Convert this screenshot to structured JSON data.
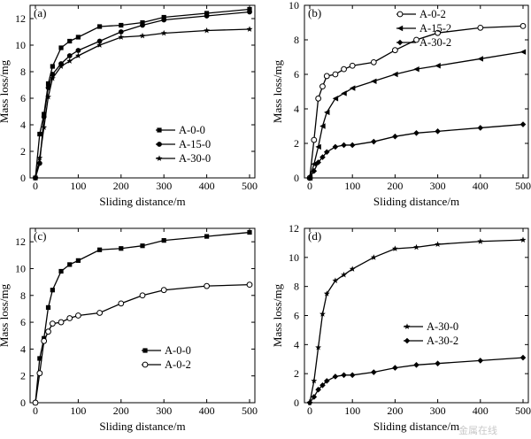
{
  "colors": {
    "ink": "#000000",
    "watermark": "#c9c9c9"
  },
  "watermark": "金属在线",
  "chart_data": [
    {
      "type": "line",
      "label": "(a)",
      "xlabel": "Sliding distance/m",
      "ylabel": "Mass loss/mg",
      "xlim": [
        0,
        500
      ],
      "ylim": [
        0,
        13
      ],
      "xticks": [
        0,
        100,
        200,
        300,
        400,
        500
      ],
      "yticks": [
        0,
        2,
        4,
        6,
        8,
        10,
        12
      ],
      "legend_position": "lower-right",
      "series": [
        {
          "name": "A-0-0",
          "marker": "square",
          "x": [
            0,
            10,
            20,
            30,
            40,
            60,
            80,
            100,
            150,
            200,
            250,
            300,
            400,
            500
          ],
          "y": [
            0,
            3.3,
            4.8,
            7.1,
            8.4,
            9.8,
            10.3,
            10.6,
            11.4,
            11.5,
            11.7,
            12.1,
            12.4,
            12.7
          ]
        },
        {
          "name": "A-15-0",
          "marker": "circle",
          "x": [
            0,
            10,
            20,
            30,
            40,
            60,
            80,
            100,
            150,
            200,
            250,
            300,
            400,
            500
          ],
          "y": [
            0,
            1.1,
            4.6,
            6.8,
            7.8,
            8.6,
            9.2,
            9.6,
            10.3,
            11.0,
            11.5,
            11.9,
            12.2,
            12.5
          ]
        },
        {
          "name": "A-30-0",
          "marker": "star",
          "x": [
            0,
            10,
            20,
            30,
            40,
            60,
            80,
            100,
            150,
            200,
            250,
            300,
            400,
            500
          ],
          "y": [
            0,
            1.5,
            3.8,
            6.1,
            7.5,
            8.4,
            8.8,
            9.2,
            10.0,
            10.6,
            10.7,
            10.9,
            11.1,
            11.2
          ]
        }
      ]
    },
    {
      "type": "line",
      "label": "(b)",
      "xlabel": "Sliding distance/m",
      "ylabel": "Mass loss/mg",
      "xlim": [
        0,
        500
      ],
      "ylim": [
        0,
        10
      ],
      "xticks": [
        0,
        100,
        200,
        300,
        400,
        500
      ],
      "yticks": [
        0,
        2,
        4,
        6,
        8,
        10
      ],
      "legend_position": "top-left",
      "series": [
        {
          "name": "A-0-2",
          "marker": "open-circle",
          "x": [
            0,
            10,
            20,
            30,
            40,
            60,
            80,
            100,
            150,
            200,
            250,
            300,
            400,
            500
          ],
          "y": [
            0,
            2.2,
            4.6,
            5.3,
            5.9,
            6.0,
            6.3,
            6.5,
            6.7,
            7.4,
            8.0,
            8.4,
            8.7,
            8.8
          ]
        },
        {
          "name": "A-15-2",
          "marker": "left-triangle",
          "x": [
            0,
            10,
            20,
            30,
            40,
            60,
            80,
            100,
            150,
            200,
            250,
            300,
            400,
            500
          ],
          "y": [
            0,
            0.8,
            1.8,
            3.0,
            3.8,
            4.6,
            4.9,
            5.2,
            5.6,
            6.0,
            6.3,
            6.5,
            6.9,
            7.3
          ]
        },
        {
          "name": "A-30-2",
          "marker": "diamond",
          "x": [
            0,
            10,
            20,
            30,
            40,
            60,
            80,
            100,
            150,
            200,
            250,
            300,
            400,
            500
          ],
          "y": [
            0,
            0.4,
            0.9,
            1.2,
            1.5,
            1.8,
            1.9,
            1.9,
            2.1,
            2.4,
            2.6,
            2.7,
            2.9,
            3.1
          ]
        }
      ]
    },
    {
      "type": "line",
      "label": "(c)",
      "xlabel": "Sliding distance/m",
      "ylabel": "Mass loss/mg",
      "xlim": [
        0,
        500
      ],
      "ylim": [
        0,
        13
      ],
      "xticks": [
        0,
        100,
        200,
        300,
        400,
        500
      ],
      "yticks": [
        0,
        2,
        4,
        6,
        8,
        10,
        12
      ],
      "legend_position": "lower-right",
      "series": [
        {
          "name": "A-0-0",
          "marker": "square",
          "x": [
            0,
            10,
            20,
            30,
            40,
            60,
            80,
            100,
            150,
            200,
            250,
            300,
            400,
            500
          ],
          "y": [
            0,
            3.3,
            4.8,
            7.1,
            8.4,
            9.8,
            10.3,
            10.6,
            11.4,
            11.5,
            11.7,
            12.1,
            12.4,
            12.7
          ]
        },
        {
          "name": "A-0-2",
          "marker": "open-circle",
          "x": [
            0,
            10,
            20,
            30,
            40,
            60,
            80,
            100,
            150,
            200,
            250,
            300,
            400,
            500
          ],
          "y": [
            0,
            2.2,
            4.6,
            5.3,
            5.9,
            6.0,
            6.3,
            6.5,
            6.7,
            7.4,
            8.0,
            8.4,
            8.7,
            8.8
          ]
        }
      ]
    },
    {
      "type": "line",
      "label": "(d)",
      "xlabel": "Sliding distance/m",
      "ylabel": "Mass loss/mg",
      "xlim": [
        0,
        500
      ],
      "ylim": [
        0,
        12
      ],
      "xticks": [
        0,
        100,
        200,
        300,
        400,
        500
      ],
      "yticks": [
        0,
        2,
        4,
        6,
        8,
        10,
        12
      ],
      "legend_position": "middle-left",
      "series": [
        {
          "name": "A-30-0",
          "marker": "star",
          "x": [
            0,
            10,
            20,
            30,
            40,
            60,
            80,
            100,
            150,
            200,
            250,
            300,
            400,
            500
          ],
          "y": [
            0,
            1.5,
            3.8,
            6.1,
            7.5,
            8.4,
            8.8,
            9.2,
            10.0,
            10.6,
            10.7,
            10.9,
            11.1,
            11.2
          ]
        },
        {
          "name": "A-30-2",
          "marker": "diamond",
          "x": [
            0,
            10,
            20,
            30,
            40,
            60,
            80,
            100,
            150,
            200,
            250,
            300,
            400,
            500
          ],
          "y": [
            0,
            0.4,
            0.9,
            1.2,
            1.5,
            1.8,
            1.9,
            1.9,
            2.1,
            2.4,
            2.6,
            2.7,
            2.9,
            3.1
          ]
        }
      ]
    }
  ]
}
